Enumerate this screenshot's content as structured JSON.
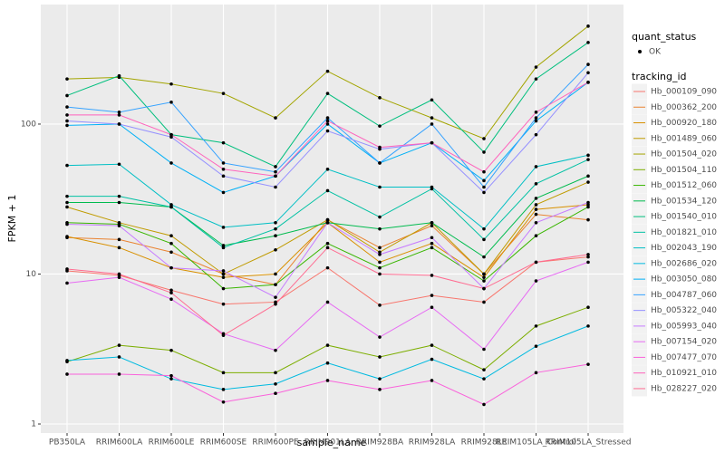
{
  "chart_data": {
    "type": "line",
    "log_y": true,
    "grid": true,
    "point_color": "#000000",
    "xlabel": "sample_name",
    "ylabel": "FPKM + 1",
    "categories": [
      "PB350LA",
      "RRIM600LA",
      "RRIM600LE",
      "RRIM600SE",
      "RRIM600PE",
      "RRIM901LA",
      "RRIM928BA",
      "RRIM928LA",
      "RRIM928LE",
      "RRIM105LA_Control",
      "RRIM105LA_Stressed"
    ],
    "ylim": [
      0.87,
      627
    ],
    "yticks": [
      1,
      10,
      100
    ],
    "status_legend": {
      "title": "quant_status",
      "levels": [
        "OK"
      ]
    },
    "legend_title": "tracking_id",
    "series": [
      {
        "name": "Hb_000109_090",
        "color": "#F8766D",
        "values": [
          10.5,
          9.8,
          7.8,
          6.3,
          6.5,
          11,
          6.2,
          7.2,
          6.5,
          12,
          13
        ]
      },
      {
        "name": "Hb_000362_200",
        "color": "#EA8331",
        "values": [
          17.5,
          17,
          14,
          10,
          8.5,
          23,
          15,
          21,
          10,
          25,
          23
        ]
      },
      {
        "name": "Hb_000920_180",
        "color": "#D89000",
        "values": [
          17.8,
          15,
          11,
          9.5,
          10,
          22,
          12,
          16,
          9.5,
          27,
          29
        ]
      },
      {
        "name": "Hb_001489_060",
        "color": "#C09B00",
        "values": [
          28,
          22,
          18,
          10,
          14.5,
          23,
          14,
          22,
          10,
          29,
          41
        ]
      },
      {
        "name": "Hb_001504_020",
        "color": "#A3A500",
        "values": [
          200,
          205,
          185,
          160,
          110,
          225,
          150,
          110,
          80,
          240,
          450
        ]
      },
      {
        "name": "Hb_001504_110",
        "color": "#7CAE00",
        "values": [
          2.6,
          3.35,
          3.1,
          2.2,
          2.2,
          3.35,
          2.8,
          3.35,
          2.3,
          4.5,
          6.0
        ]
      },
      {
        "name": "Hb_001512_060",
        "color": "#39B600",
        "values": [
          22,
          21.5,
          16,
          8,
          8.5,
          16,
          11,
          15,
          9,
          18,
          28
        ]
      },
      {
        "name": "Hb_001534_120",
        "color": "#00BB4E",
        "values": [
          30,
          30,
          28,
          15.5,
          18,
          22,
          20,
          22,
          13,
          32,
          45
        ]
      },
      {
        "name": "Hb_001540_010",
        "color": "#00BF7D",
        "values": [
          155,
          210,
          85,
          75,
          52,
          160,
          97,
          145,
          65,
          200,
          350
        ]
      },
      {
        "name": "Hb_001821_010",
        "color": "#00C1A3",
        "values": [
          33,
          33,
          28,
          15,
          20,
          36,
          24,
          37,
          17,
          40,
          58
        ]
      },
      {
        "name": "Hb_002043_190",
        "color": "#00BFC4",
        "values": [
          53,
          54,
          29,
          20.5,
          22,
          50,
          38,
          38,
          20,
          52,
          62
        ]
      },
      {
        "name": "Hb_002686_020",
        "color": "#00BAE0",
        "values": [
          2.65,
          2.8,
          2.0,
          1.7,
          1.85,
          2.55,
          2.0,
          2.7,
          2.0,
          3.3,
          4.5
        ]
      },
      {
        "name": "Hb_003050_080",
        "color": "#00B0F6",
        "values": [
          98,
          100,
          55,
          35,
          45,
          100,
          55,
          75,
          42,
          105,
          190
        ]
      },
      {
        "name": "Hb_004787_060",
        "color": "#35A2FF",
        "values": [
          130,
          120,
          140,
          55,
          48,
          110,
          55,
          100,
          38,
          110,
          250
        ]
      },
      {
        "name": "Hb_005322_040",
        "color": "#9590FF",
        "values": [
          105,
          100,
          82,
          45,
          38,
          90,
          68,
          75,
          35,
          85,
          220
        ]
      },
      {
        "name": "Hb_005993_040",
        "color": "#C77CFF",
        "values": [
          21.5,
          21,
          11,
          10.5,
          7,
          22,
          13.5,
          17.5,
          8,
          22,
          30
        ]
      },
      {
        "name": "Hb_007154_020",
        "color": "#E76BF3",
        "values": [
          8.7,
          9.5,
          6.8,
          4.0,
          3.1,
          6.5,
          3.8,
          6,
          3.15,
          9,
          12
        ]
      },
      {
        "name": "Hb_007477_070",
        "color": "#FA62DB",
        "values": [
          2.15,
          2.15,
          2.1,
          1.4,
          1.6,
          1.95,
          1.7,
          1.95,
          1.35,
          2.2,
          2.5
        ]
      },
      {
        "name": "Hb_010921_010",
        "color": "#FF62BC",
        "values": [
          115,
          115,
          85,
          50,
          45,
          105,
          70,
          75,
          48,
          120,
          190
        ]
      },
      {
        "name": "Hb_028227_020",
        "color": "#FF6C91",
        "values": [
          10.8,
          10,
          7.5,
          3.9,
          6.3,
          15,
          10,
          9.8,
          8,
          12,
          13.5
        ]
      }
    ]
  }
}
